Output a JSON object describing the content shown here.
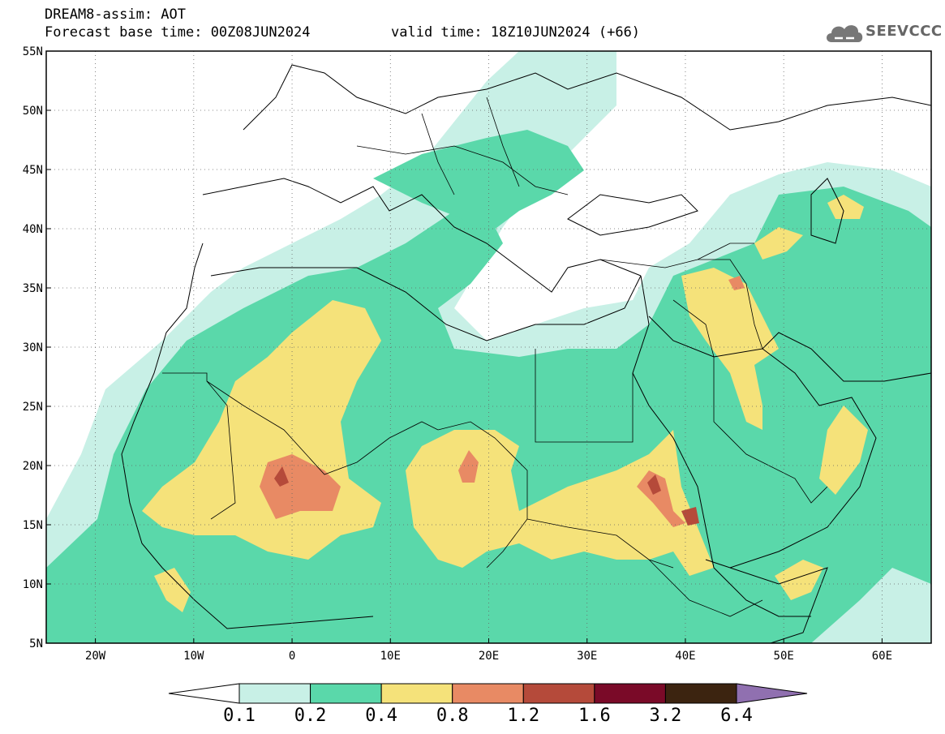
{
  "header": {
    "line1": "DREAM8-assim: AOT",
    "line2": "Forecast base time: 00Z08JUN2024",
    "valid": "valid time: 18Z10JUN2024 (+66)"
  },
  "logo": {
    "text": "SEEVCCC",
    "icon": "cloud-icon"
  },
  "map": {
    "lon_range": [
      -25,
      65
    ],
    "lat_range": [
      5,
      55
    ],
    "lon_ticks": [
      {
        "lon": -20,
        "label": "20W"
      },
      {
        "lon": -10,
        "label": "10W"
      },
      {
        "lon": 0,
        "label": "0"
      },
      {
        "lon": 10,
        "label": "10E"
      },
      {
        "lon": 20,
        "label": "20E"
      },
      {
        "lon": 30,
        "label": "30E"
      },
      {
        "lon": 40,
        "label": "40E"
      },
      {
        "lon": 50,
        "label": "50E"
      },
      {
        "lon": 60,
        "label": "60E"
      }
    ],
    "lat_ticks": [
      {
        "lat": 5,
        "label": "5N"
      },
      {
        "lat": 10,
        "label": "10N"
      },
      {
        "lat": 15,
        "label": "15N"
      },
      {
        "lat": 20,
        "label": "20N"
      },
      {
        "lat": 25,
        "label": "25N"
      },
      {
        "lat": 30,
        "label": "30N"
      },
      {
        "lat": 35,
        "label": "35N"
      },
      {
        "lat": 40,
        "label": "40N"
      },
      {
        "lat": 45,
        "label": "45N"
      },
      {
        "lat": 50,
        "label": "50N"
      },
      {
        "lat": 55,
        "label": "55N"
      }
    ]
  },
  "colorbar": {
    "levels": [
      "0.1",
      "0.2",
      "0.4",
      "0.8",
      "1.2",
      "1.6",
      "3.2",
      "6.4"
    ],
    "colors": [
      "#c8f0e6",
      "#5ad8aa",
      "#f5e27a",
      "#e88a64",
      "#b54a3a",
      "#7a0a28",
      "#3c2410"
    ],
    "under_color": "#ffffff",
    "over_color": "#9070b0"
  },
  "fill_colors": {
    "c1": "#c8f0e6",
    "c2": "#5ad8aa",
    "c3": "#f5e27a",
    "c4": "#e88a64",
    "c5": "#b54a3a",
    "c6": "#7a0a28"
  }
}
